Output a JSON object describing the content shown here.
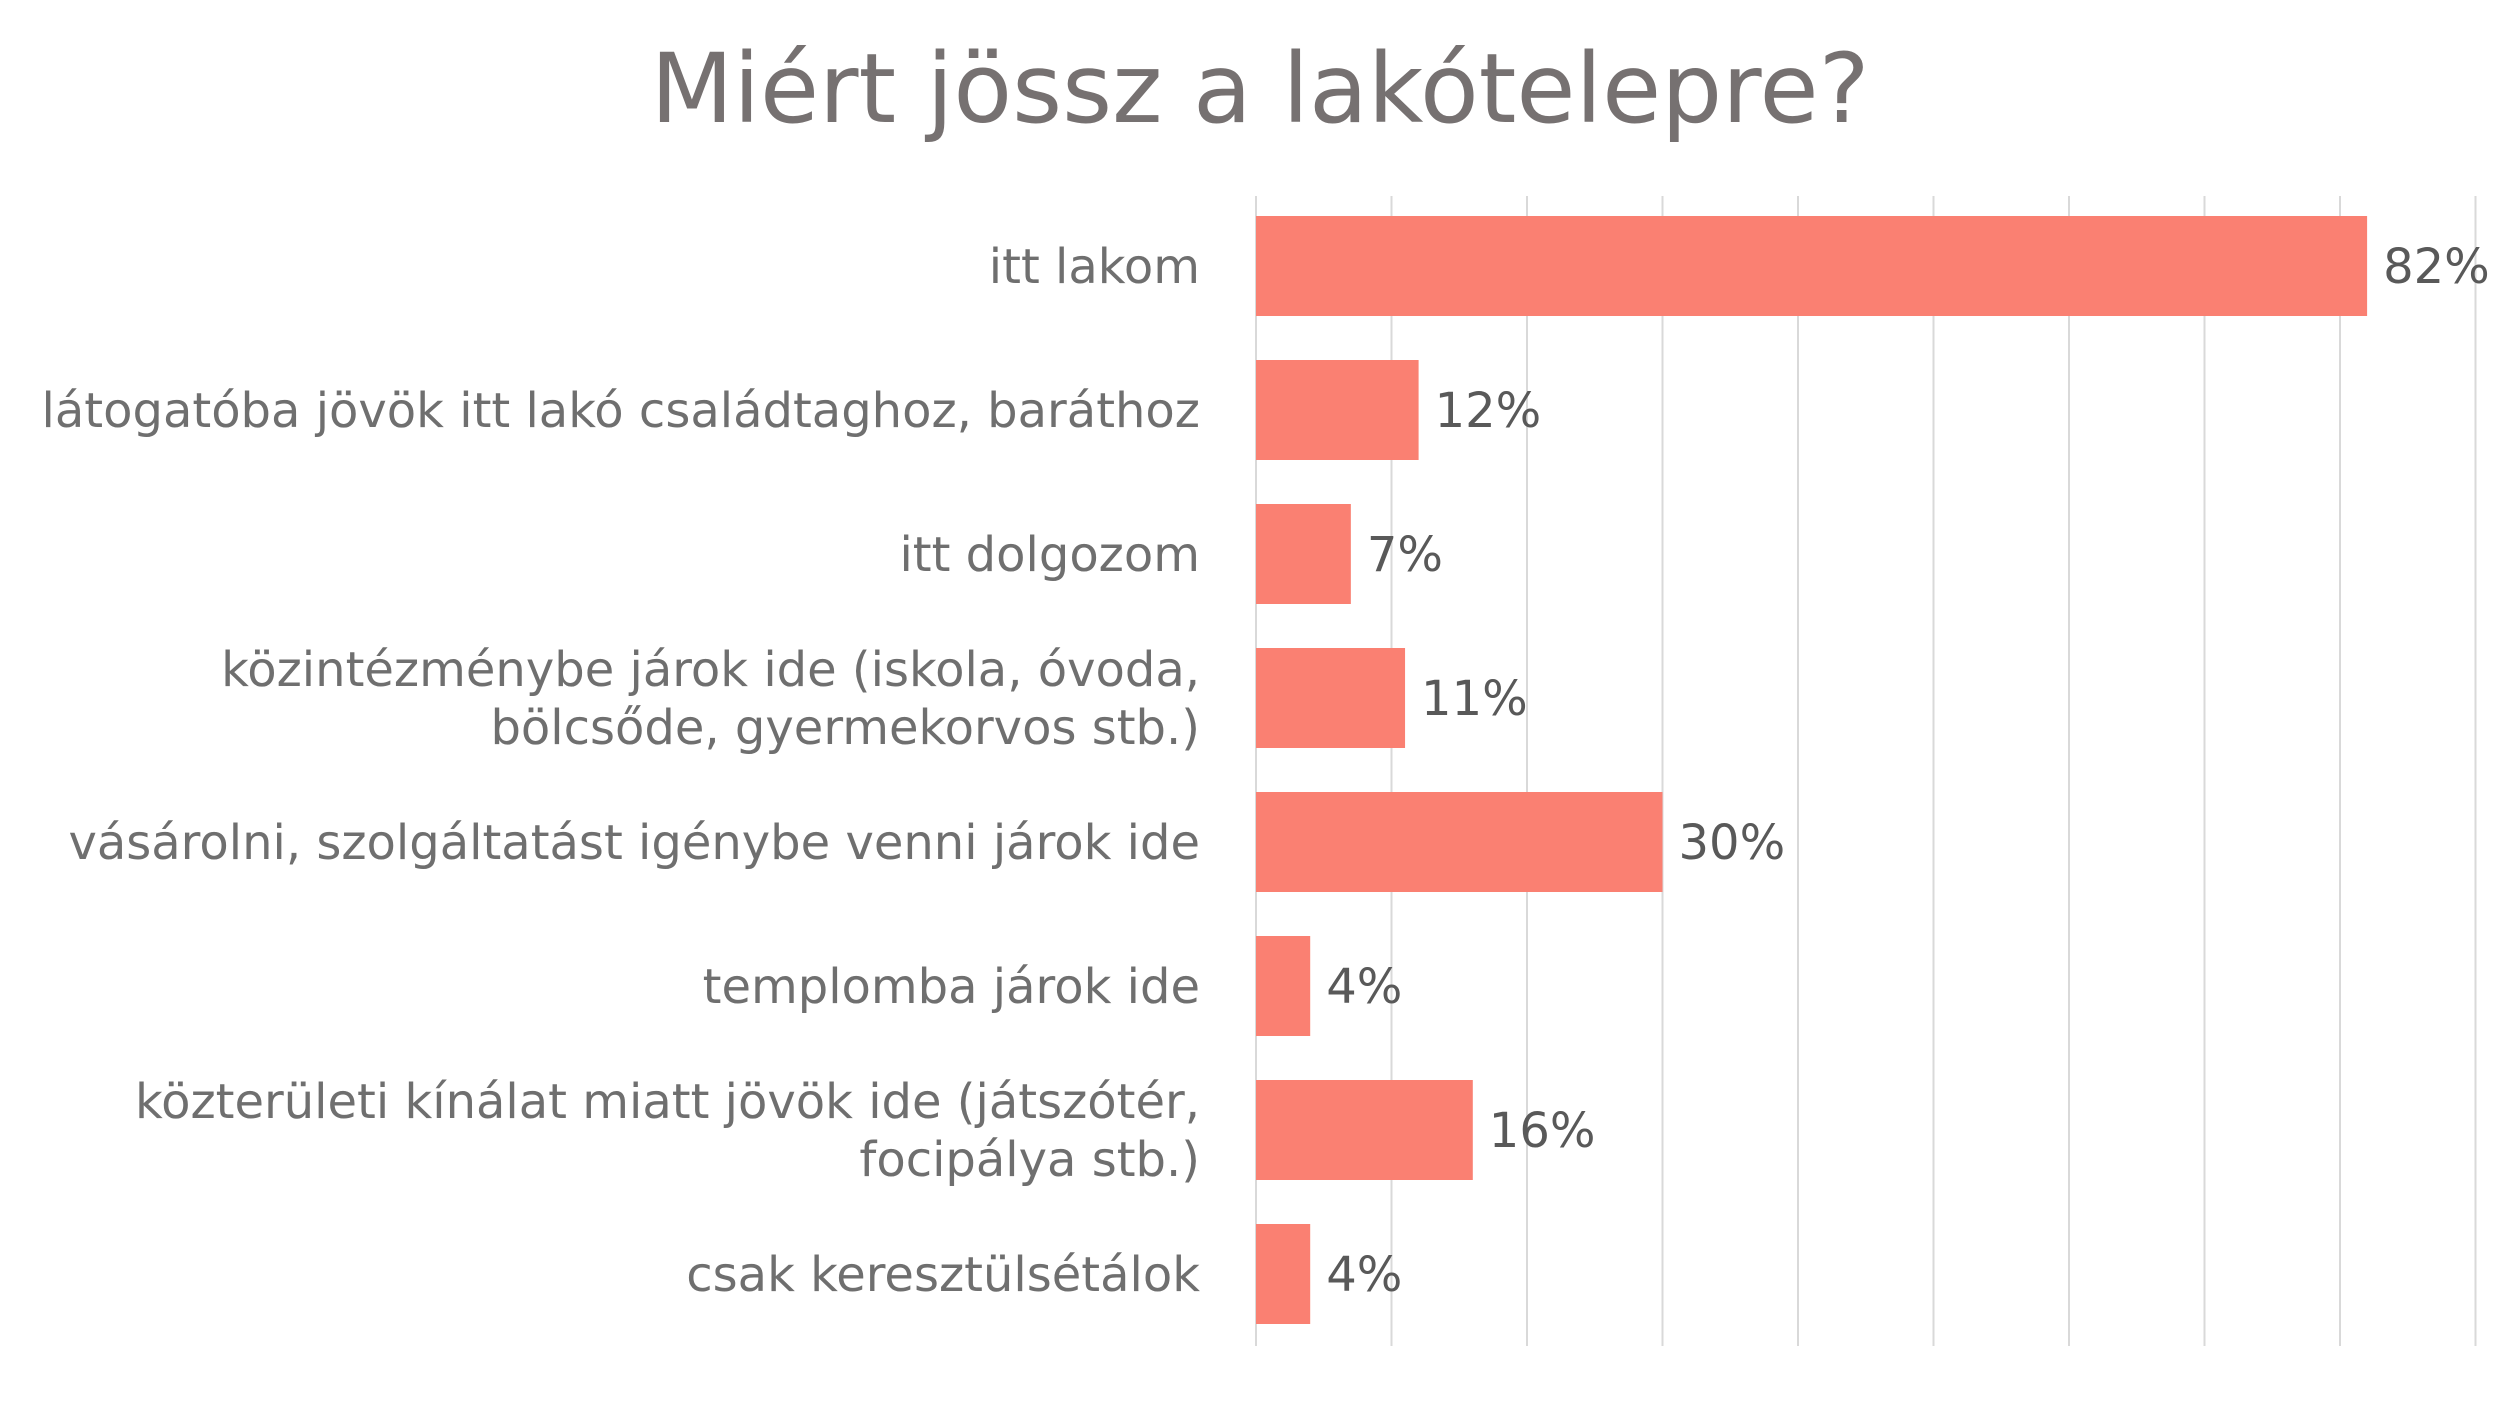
{
  "chart_data": {
    "type": "bar",
    "orientation": "horizontal",
    "title": "Miért jössz a lakótelepre?",
    "categories": [
      [
        "itt lakom"
      ],
      [
        "látogatóba jövök itt lakó családtaghoz, baráthoz"
      ],
      [
        "itt dolgozom"
      ],
      [
        "közintézménybe járok ide (iskola, óvoda,",
        "bölcsőde, gyermekorvos stb.)"
      ],
      [
        "vásárolni, szolgáltatást igénybe venni járok ide"
      ],
      [
        "templomba járok ide"
      ],
      [
        "közterületi kínálat miatt jövök ide (játszótér,",
        "focipálya stb.)"
      ],
      [
        "csak keresztülsétálok"
      ]
    ],
    "values": [
      82,
      12,
      7,
      11,
      30,
      4,
      16,
      4
    ],
    "value_labels": [
      "82%",
      "12%",
      "7%",
      "11%",
      "30%",
      "4%",
      "16%",
      "4%"
    ],
    "xlim": [
      0,
      90
    ],
    "grid": true,
    "grid_step": 10,
    "legend": false,
    "colors": {
      "bar": "#FA8072",
      "grid": "#d9d9d9",
      "title": "#767171",
      "category_text": "#6f6f6f",
      "value_text": "#595959"
    }
  }
}
